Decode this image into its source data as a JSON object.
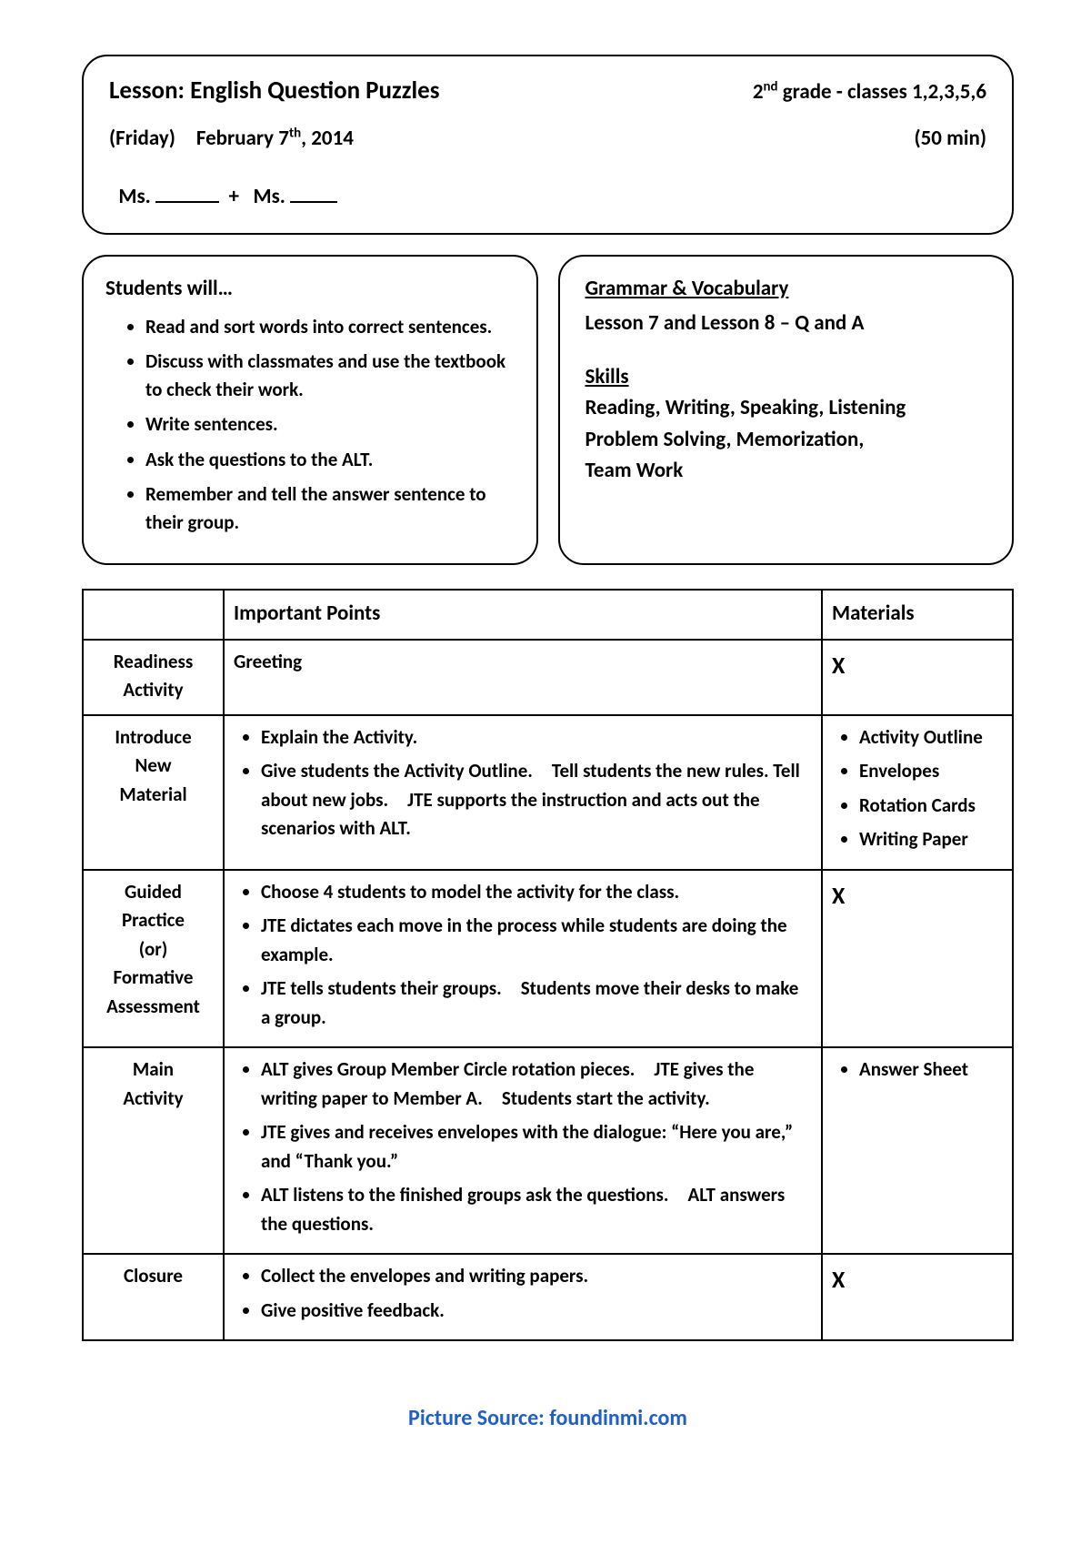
{
  "header": {
    "title": "Lesson: English Question Puzzles",
    "grade_html": "2<sup>nd</sup> grade - classes 1,2,3,5,6",
    "date_html": "(Friday) February 7<sup>th</sup>, 2014",
    "duration": "(50 min)",
    "teachers_label_1": "Ms.",
    "teachers_plus": "+",
    "teachers_label_2": "Ms."
  },
  "students": {
    "title": "Students will…",
    "items": [
      "Read and sort words into correct sentences.",
      "Discuss with classmates and use the textbook to check their work.",
      "Write sentences.",
      "Ask the questions to the ALT.",
      "Remember and tell the answer sentence to their group."
    ]
  },
  "grammar": {
    "heading": "Grammar & Vocabulary",
    "line1": "Lesson 7 and Lesson 8 – Q and A",
    "skills_heading": "Skills",
    "skills_lines": [
      "Reading, Writing, Speaking, Listening",
      "Problem Solving, Memorization,",
      "Team Work"
    ]
  },
  "table": {
    "headers": {
      "col1": "",
      "col2": "Important Points",
      "col3": "Materials"
    },
    "rows": [
      {
        "label": "Readiness Activity",
        "points_plain": "Greeting",
        "materials_x": "X"
      },
      {
        "label": "Introduce New Material",
        "points": [
          "Explain the Activity.",
          "Give students the Activity Outline. Tell students the new rules. Tell about new jobs. JTE supports the instruction and acts out the scenarios with ALT."
        ],
        "materials": [
          "Activity Outline",
          "Envelopes",
          "Rotation Cards",
          "Writing Paper"
        ]
      },
      {
        "label": "Guided Practice (or) Formative Assessment",
        "points": [
          "Choose 4 students to model the activity for the class.",
          "JTE dictates each move in the process while students are doing the example.",
          "JTE tells students their groups. Students move their desks to make a group."
        ],
        "materials_x": "X"
      },
      {
        "label": "Main Activity",
        "points": [
          "ALT gives Group Member Circle rotation pieces. JTE gives the writing paper to Member A. Students start the activity.",
          "JTE gives and receives envelopes with the dialogue: “Here you are,” and “Thank you.”",
          "ALT listens to the finished groups ask the questions. ALT answers the questions."
        ],
        "materials": [
          "Answer Sheet"
        ]
      },
      {
        "label": "Closure",
        "points": [
          "Collect the envelopes and writing papers.",
          "Give positive feedback."
        ],
        "materials_x": "X"
      }
    ]
  },
  "credit": "Picture Source: foundinmi.com",
  "colors": {
    "border": "#000000",
    "text": "#000000",
    "credit": "#215fc4",
    "background": "#ffffff"
  }
}
